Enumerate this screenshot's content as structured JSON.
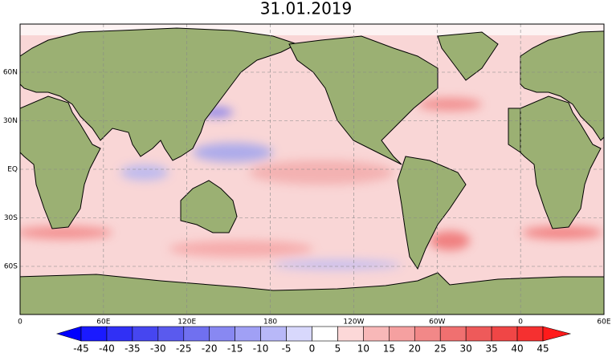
{
  "title": "31.01.2019",
  "lon_labels": [
    "0",
    "60E",
    "120E",
    "180",
    "120W",
    "60W",
    "0",
    "60E"
  ],
  "lat_labels": [
    "60N",
    "30N",
    "EQ",
    "30S",
    "60S"
  ],
  "colorbar": {
    "ticks": [
      -45,
      -40,
      -35,
      -30,
      -25,
      -20,
      -15,
      -10,
      -5,
      0,
      5,
      10,
      15,
      20,
      25,
      30,
      35,
      40,
      45
    ],
    "colors": [
      "#0000ff",
      "#1a1aff",
      "#3030f5",
      "#4646f0",
      "#5a5aee",
      "#7070f0",
      "#8888f2",
      "#a0a0f5",
      "#b8b8f8",
      "#d8d8fc",
      "#ffffff",
      "#fcd8d8",
      "#f8b8b8",
      "#f5a0a0",
      "#f28888",
      "#f07070",
      "#ee5a5a",
      "#f04646",
      "#f53030",
      "#ff1a1a"
    ]
  }
}
